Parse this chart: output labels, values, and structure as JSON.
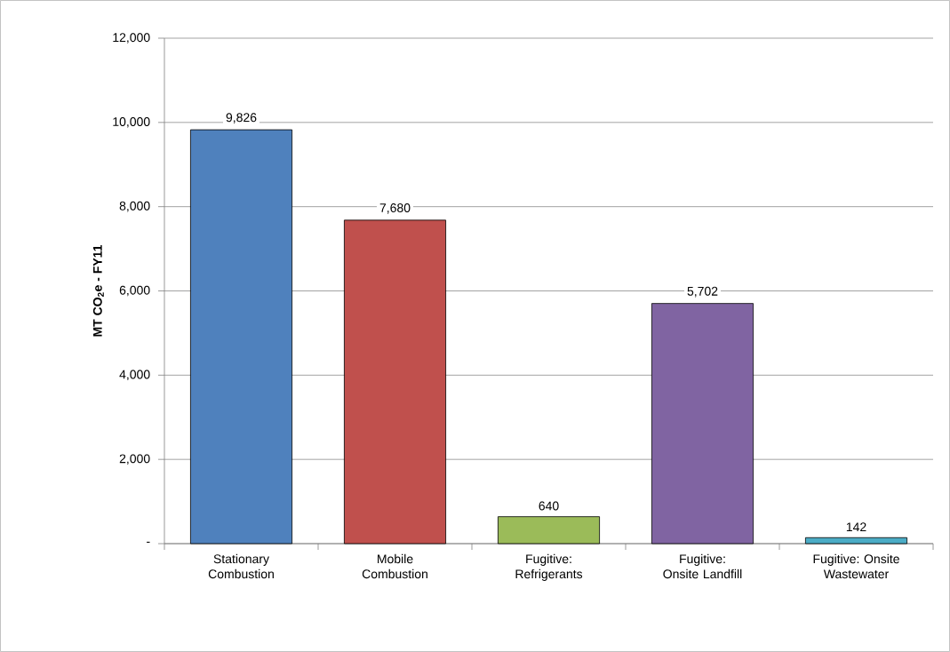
{
  "chart_data": {
    "type": "bar",
    "ylabel": "MT CO$_{2}$e - FY11",
    "categories": [
      "Stationary Combustion",
      "Mobile Combustion",
      "Fugitive: Refrigerants",
      "Fugitive: Onsite Landfill",
      "Fugitive: Onsite Wastewater"
    ],
    "values": [
      9826,
      7680,
      640,
      5702,
      142
    ],
    "value_labels": [
      "9,826",
      "7,680",
      "640",
      "5,702",
      "142"
    ],
    "colors": [
      "#4f81bd",
      "#c0504d",
      "#9bbb59",
      "#8064a2",
      "#4bacc6"
    ],
    "ylim": [
      0,
      12000
    ],
    "yticks": [
      {
        "value": 0,
        "label": "-"
      },
      {
        "value": 2000,
        "label": "2,000"
      },
      {
        "value": 4000,
        "label": "4,000"
      },
      {
        "value": 6000,
        "label": "6,000"
      },
      {
        "value": 8000,
        "label": "8,000"
      },
      {
        "value": 10000,
        "label": "10,000"
      },
      {
        "value": 12000,
        "label": "12,000"
      }
    ],
    "grid": "y"
  }
}
